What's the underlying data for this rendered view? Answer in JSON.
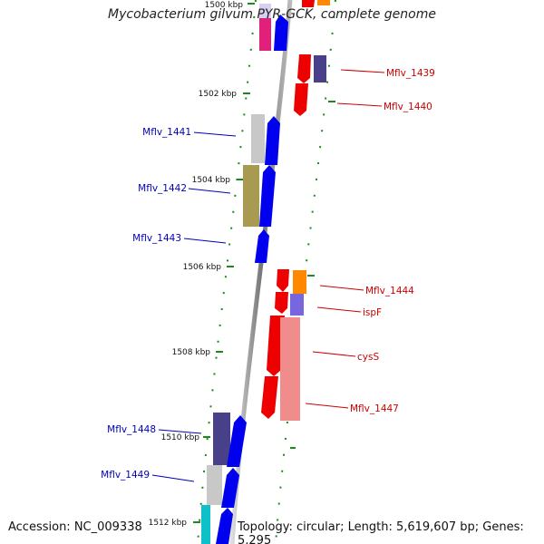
{
  "title": "Mycobacterium gilvum PYR-GCK, complete genome",
  "footer": {
    "accession": "Accession: NC_009338",
    "topology": "Topology: circular; Length: 5,619,607 bp; Genes: 5,295"
  },
  "colors": {
    "backbone": "#888888",
    "tick": "#1a8a1a",
    "forward_label": "#0000bb",
    "reverse_label": "#cc0000",
    "blue": "#0000ee",
    "red": "#ee0000",
    "orange": "#ff8800",
    "indigo": "#484088",
    "lavender": "#7766dd",
    "salmon": "#f08c8c",
    "olive": "#a89a50",
    "silver": "#c8c8c8",
    "magenta": "#e0207a",
    "pale-lavender": "#d8d0f0",
    "cyan": "#10c0c8"
  },
  "kbp_marks": [
    "1500 kbp",
    "1502 kbp",
    "1504 kbp",
    "1506 kbp",
    "1508 kbp",
    "1510 kbp",
    "1512 kbp"
  ],
  "gene_labels": [
    {
      "text": "Mflv_1439",
      "strand": "reverse"
    },
    {
      "text": "Mflv_1440",
      "strand": "reverse"
    },
    {
      "text": "Mflv_1441",
      "strand": "forward"
    },
    {
      "text": "Mflv_1442",
      "strand": "forward"
    },
    {
      "text": "Mflv_1443",
      "strand": "forward"
    },
    {
      "text": "Mflv_1444",
      "strand": "reverse"
    },
    {
      "text": "ispF",
      "strand": "reverse"
    },
    {
      "text": "cysS",
      "strand": "reverse"
    },
    {
      "text": "Mflv_1447",
      "strand": "reverse"
    },
    {
      "text": "Mflv_1448",
      "strand": "forward"
    },
    {
      "text": "Mflv_1449",
      "strand": "forward"
    }
  ],
  "features": [
    {
      "name": "feature-magenta-1",
      "strand": "forward",
      "lane": "outer",
      "type": "box",
      "color": "magenta"
    },
    {
      "name": "feature-pale-lavender-1",
      "strand": "forward",
      "lane": "outer",
      "type": "box",
      "color": "pale-lavender"
    },
    {
      "name": "gene-top-blue",
      "strand": "forward",
      "lane": "inner",
      "type": "arrow",
      "color": "blue"
    },
    {
      "name": "gene-top-red",
      "strand": "reverse",
      "lane": "inner",
      "type": "arrow",
      "color": "red"
    },
    {
      "name": "gene-top-orange",
      "strand": "reverse",
      "lane": "outer",
      "type": "box",
      "color": "orange"
    },
    {
      "name": "gene-mflv-1439",
      "strand": "reverse",
      "lane": "inner",
      "type": "arrow",
      "color": "red"
    },
    {
      "name": "feature-mflv-1439",
      "strand": "reverse",
      "lane": "outer",
      "type": "box",
      "color": "indigo"
    },
    {
      "name": "gene-mflv-1440",
      "strand": "reverse",
      "lane": "inner",
      "type": "arrow",
      "color": "red"
    },
    {
      "name": "feature-mflv-1441",
      "strand": "forward",
      "lane": "outer",
      "type": "box",
      "color": "silver"
    },
    {
      "name": "gene-mflv-1441",
      "strand": "forward",
      "lane": "inner",
      "type": "arrow",
      "color": "blue"
    },
    {
      "name": "feature-mflv-1442",
      "strand": "forward",
      "lane": "outer",
      "type": "box",
      "color": "olive"
    },
    {
      "name": "gene-mflv-1442",
      "strand": "forward",
      "lane": "inner",
      "type": "arrow",
      "color": "blue"
    },
    {
      "name": "gene-mflv-1443",
      "strand": "forward",
      "lane": "inner",
      "type": "arrow",
      "color": "blue"
    },
    {
      "name": "gene-mflv-1444",
      "strand": "reverse",
      "lane": "inner",
      "type": "arrow",
      "color": "red"
    },
    {
      "name": "feature-mflv-1444",
      "strand": "reverse",
      "lane": "outer",
      "type": "box",
      "color": "orange"
    },
    {
      "name": "gene-ispf",
      "strand": "reverse",
      "lane": "inner",
      "type": "arrow",
      "color": "red"
    },
    {
      "name": "feature-ispf",
      "strand": "reverse",
      "lane": "outer",
      "type": "box",
      "color": "lavender"
    },
    {
      "name": "gene-cyss",
      "strand": "reverse",
      "lane": "inner",
      "type": "arrow",
      "color": "red"
    },
    {
      "name": "feature-cyss",
      "strand": "reverse",
      "lane": "outer",
      "type": "box",
      "color": "salmon"
    },
    {
      "name": "gene-mflv-1447",
      "strand": "reverse",
      "lane": "inner",
      "type": "arrow",
      "color": "red"
    },
    {
      "name": "feature-mflv-1448",
      "strand": "forward",
      "lane": "outer",
      "type": "box",
      "color": "indigo"
    },
    {
      "name": "gene-mflv-1448",
      "strand": "forward",
      "lane": "inner",
      "type": "arrow",
      "color": "blue"
    },
    {
      "name": "feature-mflv-1449",
      "strand": "forward",
      "lane": "outer",
      "type": "box",
      "color": "silver"
    },
    {
      "name": "gene-mflv-1449",
      "strand": "forward",
      "lane": "inner",
      "type": "arrow",
      "color": "blue"
    },
    {
      "name": "feature-bottom-cyan",
      "strand": "forward",
      "lane": "outer",
      "type": "box",
      "color": "cyan"
    },
    {
      "name": "gene-bottom-blue",
      "strand": "forward",
      "lane": "inner",
      "type": "arrow",
      "color": "blue"
    }
  ]
}
